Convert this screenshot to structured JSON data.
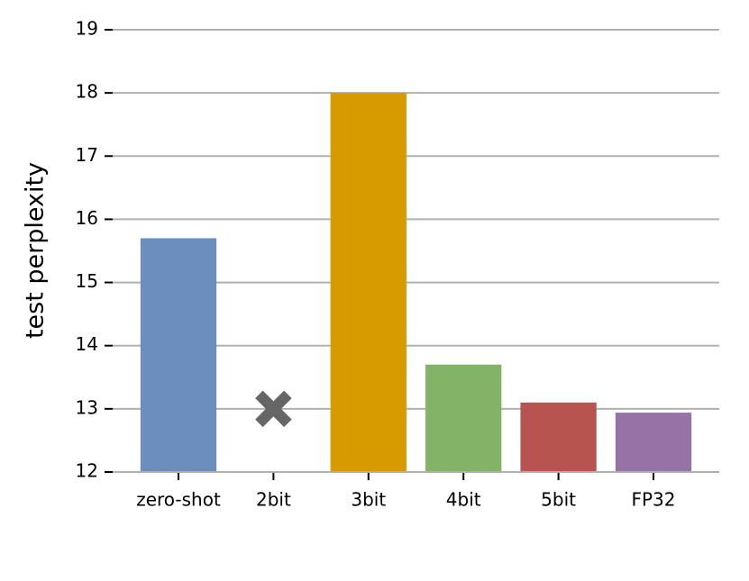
{
  "chart_data": {
    "type": "bar",
    "y_label": "test perplexity",
    "categories": [
      "zero-shot",
      "2bit",
      "3bit",
      "4bit",
      "5bit",
      "FP32"
    ],
    "values": [
      15.7,
      null,
      18.0,
      13.7,
      13.1,
      12.94
    ],
    "colors": [
      "#6c8ebf",
      "#666666",
      "#d79b00",
      "#82b366",
      "#b85450",
      "#9673a6"
    ],
    "marker_values": [
      null,
      13,
      null,
      null,
      null,
      null
    ],
    "marker": "X",
    "marker_color": "#666666",
    "ylim": [
      12,
      19
    ],
    "yticks": [
      12,
      13,
      14,
      15,
      16,
      17,
      18,
      19
    ],
    "grid": true
  }
}
